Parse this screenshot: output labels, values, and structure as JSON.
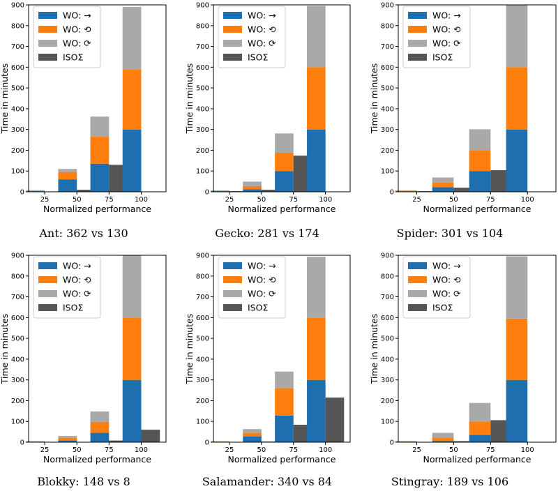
{
  "colors": {
    "wo_forward": "#1f6fb0",
    "wo_ccw": "#ff7f0e",
    "wo_cw": "#a9a9a9",
    "iso": "#555555"
  },
  "legend": [
    "WO: →",
    "WO: ⟲",
    "WO: ⟳",
    "ISOΣ"
  ],
  "chart_data": [
    {
      "type": "bar",
      "caption": "Ant: 362 vs 130",
      "xlabel": "Normalized performance",
      "ylabel": "Time in minutes",
      "ylim": [
        0,
        900
      ],
      "yticks": [
        0,
        100,
        200,
        300,
        400,
        500,
        600,
        700,
        800,
        900
      ],
      "categories": [
        "25",
        "50",
        "75",
        "100"
      ],
      "series": [
        {
          "name": "WO: →",
          "values": [
            3,
            60,
            135,
            300
          ]
        },
        {
          "name": "WO: ⟲",
          "values": [
            3,
            35,
            130,
            290
          ]
        },
        {
          "name": "WO: ⟳",
          "values": [
            2,
            15,
            97,
            300
          ]
        },
        {
          "name": "ISOΣ",
          "values": [
            0,
            10,
            130,
            0
          ]
        }
      ]
    },
    {
      "type": "bar",
      "caption": "Gecko: 281 vs 174",
      "xlabel": "Normalized performance",
      "ylabel": "Time in minutes",
      "ylim": [
        0,
        900
      ],
      "yticks": [
        0,
        100,
        200,
        300,
        400,
        500,
        600,
        700,
        800,
        900
      ],
      "categories": [
        "25",
        "50",
        "75",
        "100"
      ],
      "series": [
        {
          "name": "WO: →",
          "values": [
            3,
            12,
            100,
            300
          ]
        },
        {
          "name": "WO: ⟲",
          "values": [
            2,
            15,
            88,
            300
          ]
        },
        {
          "name": "WO: ⟳",
          "values": [
            2,
            22,
            93,
            295
          ]
        },
        {
          "name": "ISOΣ",
          "values": [
            3,
            10,
            174,
            0
          ]
        }
      ]
    },
    {
      "type": "bar",
      "caption": "Spider: 301 vs 104",
      "xlabel": "Normalized performance",
      "ylabel": "Time in minutes",
      "ylim": [
        0,
        900
      ],
      "yticks": [
        0,
        100,
        200,
        300,
        400,
        500,
        600,
        700,
        800,
        900
      ],
      "categories": [
        "25",
        "50",
        "75",
        "100"
      ],
      "series": [
        {
          "name": "WO: →",
          "values": [
            2,
            22,
            100,
            300
          ]
        },
        {
          "name": "WO: ⟲",
          "values": [
            3,
            22,
            100,
            300
          ]
        },
        {
          "name": "WO: ⟳",
          "values": [
            2,
            25,
            101,
            300
          ]
        },
        {
          "name": "ISOΣ",
          "values": [
            3,
            20,
            104,
            0
          ]
        }
      ]
    },
    {
      "type": "bar",
      "caption": "Blokky: 148 vs 8",
      "xlabel": "Normalized performance",
      "ylabel": "Time in minutes",
      "ylim": [
        0,
        900
      ],
      "yticks": [
        0,
        100,
        200,
        300,
        400,
        500,
        600,
        700,
        800,
        900
      ],
      "categories": [
        "25",
        "50",
        "75",
        "100"
      ],
      "series": [
        {
          "name": "WO: →",
          "values": [
            1,
            8,
            45,
            300
          ]
        },
        {
          "name": "WO: ⟲",
          "values": [
            2,
            12,
            53,
            300
          ]
        },
        {
          "name": "WO: ⟳",
          "values": [
            2,
            10,
            50,
            300
          ]
        },
        {
          "name": "ISOΣ",
          "values": [
            0,
            0,
            8,
            60
          ]
        }
      ]
    },
    {
      "type": "bar",
      "caption": "Salamander: 340 vs 84",
      "xlabel": "Normalized performance",
      "ylabel": "Time in minutes",
      "ylim": [
        0,
        900
      ],
      "yticks": [
        0,
        100,
        200,
        300,
        400,
        500,
        600,
        700,
        800,
        900
      ],
      "categories": [
        "25",
        "50",
        "75",
        "100"
      ],
      "series": [
        {
          "name": "WO: →",
          "values": [
            2,
            28,
            128,
            300
          ]
        },
        {
          "name": "WO: ⟲",
          "values": [
            2,
            17,
            132,
            298
          ]
        },
        {
          "name": "WO: ⟳",
          "values": [
            1,
            18,
            80,
            295
          ]
        },
        {
          "name": "ISOΣ",
          "values": [
            0,
            3,
            84,
            215
          ]
        }
      ]
    },
    {
      "type": "bar",
      "caption": "Stingray: 189 vs 106",
      "xlabel": "Normalized performance",
      "ylabel": "Time in minutes",
      "ylim": [
        0,
        900
      ],
      "yticks": [
        0,
        100,
        200,
        300,
        400,
        500,
        600,
        700,
        800,
        900
      ],
      "categories": [
        "25",
        "50",
        "75",
        "100"
      ],
      "series": [
        {
          "name": "WO: →",
          "values": [
            2,
            5,
            35,
            300
          ]
        },
        {
          "name": "WO: ⟲",
          "values": [
            2,
            15,
            65,
            295
          ]
        },
        {
          "name": "WO: ⟳",
          "values": [
            2,
            25,
            89,
            300
          ]
        },
        {
          "name": "ISOΣ",
          "values": [
            0,
            5,
            106,
            0
          ]
        }
      ]
    }
  ]
}
